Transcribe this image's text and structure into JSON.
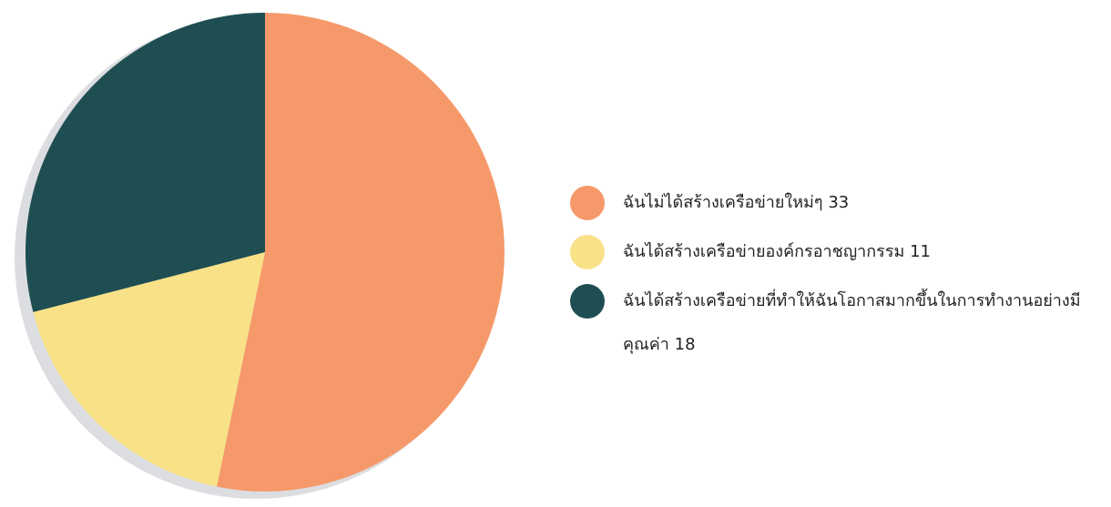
{
  "chart_data": {
    "type": "pie",
    "title": "",
    "legend_position": "right",
    "series": [
      {
        "label": "ฉันไม่ได้สร้างเครือข่ายใหม่ๆ",
        "value": 33,
        "color": "#F6996A"
      },
      {
        "label": "ฉันได้สร้างเครือข่ายองค์กรอาชญากรรม",
        "value": 11,
        "color": "#F8E187"
      },
      {
        "label": "ฉันได้สร้างเครือข่ายที่ทำให้ฉันโอกาสมากขึ้นในการทำงานอย่างมีคุณค่า",
        "value": 18,
        "color": "#1F4E52"
      }
    ]
  },
  "shadow_color": "#DCDDE0"
}
